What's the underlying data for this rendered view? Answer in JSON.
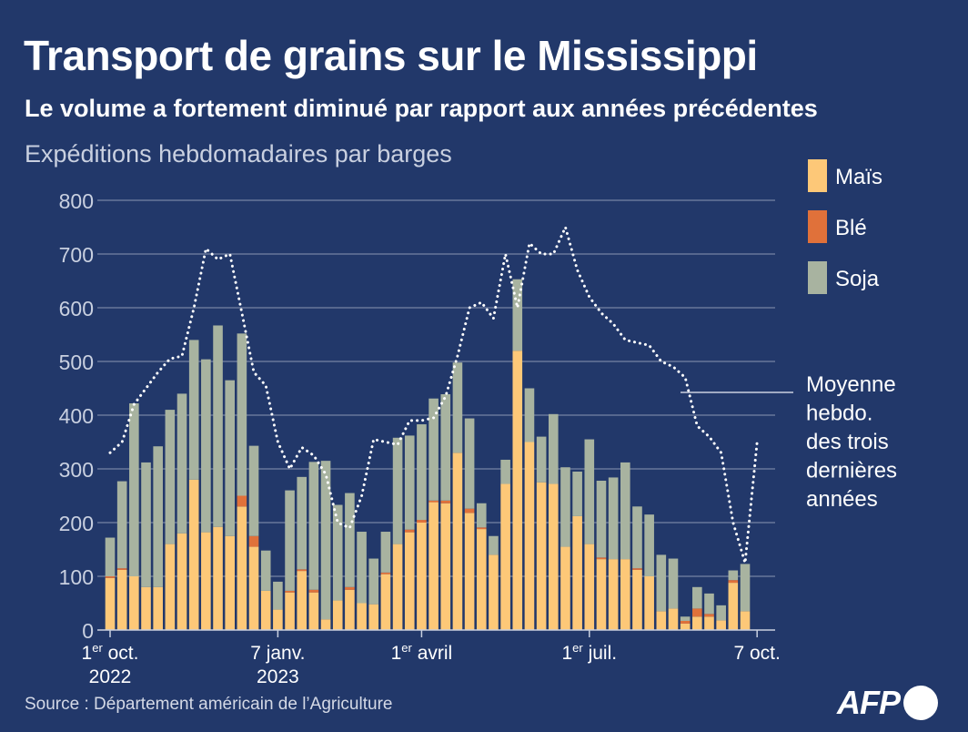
{
  "title": "Transport de grains sur le Mississippi",
  "subtitle": "Le volume a fortement diminué par rapport aux années précédentes",
  "source": "Source : Département américain de l’Agriculture",
  "logo_text": "AFP",
  "colors": {
    "background": "#22386a",
    "mais": "#fdc878",
    "ble": "#e0713a",
    "soja": "#a8b3a0",
    "grid": "#8a96b3",
    "average_line": "#ffffff"
  },
  "chart_data": {
    "type": "bar",
    "stacked": true,
    "ylabel": "Expéditions hebdomadaires par barges",
    "ylim": [
      0,
      800
    ],
    "yticks": [
      0,
      100,
      200,
      300,
      400,
      500,
      600,
      700,
      800
    ],
    "grid": true,
    "legend_position": "top-right",
    "xticks": [
      {
        "index": 0,
        "label": "1er oct.",
        "line2": "2022"
      },
      {
        "index": 14,
        "label": "7 janv.",
        "line2": "2023"
      },
      {
        "index": 26,
        "label": "1er avril",
        "line2": ""
      },
      {
        "index": 40,
        "label": "1er juil.",
        "line2": ""
      },
      {
        "index": 54,
        "label": "7 oct.",
        "line2": ""
      }
    ],
    "series": [
      {
        "name": "Maïs",
        "key": "mais",
        "values": [
          97,
          112,
          100,
          80,
          80,
          160,
          180,
          280,
          182,
          192,
          175,
          230,
          155,
          73,
          38,
          70,
          110,
          70,
          20,
          55,
          75,
          50,
          48,
          104,
          160,
          182,
          200,
          238,
          236,
          330,
          218,
          188,
          140,
          272,
          520,
          350,
          275,
          272,
          155,
          212,
          160,
          132,
          132,
          132,
          112,
          100,
          35,
          40,
          12,
          25,
          25,
          18,
          88,
          35
        ]
      },
      {
        "name": "Blé",
        "key": "ble",
        "values": [
          3,
          3,
          0,
          0,
          0,
          0,
          0,
          0,
          0,
          0,
          0,
          20,
          20,
          0,
          0,
          3,
          3,
          5,
          0,
          0,
          5,
          0,
          0,
          3,
          0,
          5,
          5,
          3,
          5,
          0,
          8,
          3,
          0,
          0,
          0,
          0,
          0,
          0,
          0,
          0,
          0,
          3,
          0,
          0,
          3,
          0,
          0,
          0,
          5,
          15,
          5,
          0,
          5,
          0
        ]
      },
      {
        "name": "Soja",
        "key": "soja",
        "values": [
          72,
          162,
          322,
          232,
          262,
          250,
          260,
          260,
          322,
          375,
          290,
          302,
          168,
          75,
          52,
          187,
          172,
          238,
          295,
          178,
          175,
          133,
          85,
          76,
          198,
          175,
          178,
          190,
          198,
          168,
          168,
          45,
          35,
          45,
          133,
          100,
          85,
          130,
          148,
          83,
          195,
          143,
          152,
          180,
          115,
          115,
          105,
          93,
          8,
          40,
          38,
          28,
          18,
          88
        ]
      }
    ],
    "average_line": {
      "name": "Moyenne hebdo. des trois dernières années",
      "values": [
        330,
        350,
        420,
        450,
        480,
        505,
        510,
        600,
        710,
        690,
        700,
        590,
        480,
        455,
        350,
        300,
        340,
        325,
        290,
        200,
        190,
        250,
        355,
        350,
        345,
        390,
        390,
        395,
        435,
        510,
        600,
        610,
        580,
        700,
        600,
        720,
        700,
        700,
        750,
        670,
        620,
        590,
        570,
        540,
        535,
        530,
        500,
        490,
        470,
        380,
        360,
        330,
        200,
        125,
        350
      ]
    }
  }
}
